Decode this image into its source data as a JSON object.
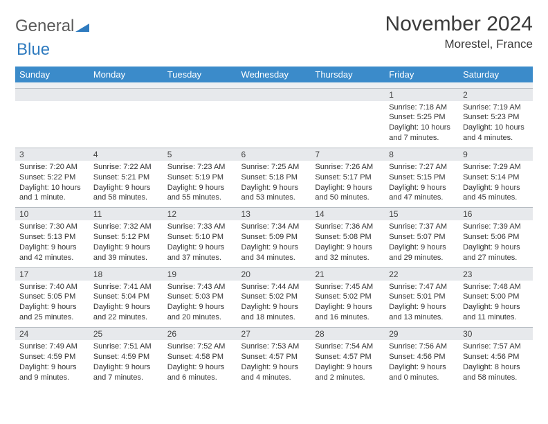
{
  "logo": {
    "text1": "General",
    "text2": "Blue"
  },
  "title": "November 2024",
  "location": "Morestel, France",
  "colors": {
    "header_bg": "#3b8bca",
    "header_text": "#ffffff",
    "daynum_bg": "#e7e9ec",
    "border": "#b6bcc2",
    "text": "#333333"
  },
  "day_names": [
    "Sunday",
    "Monday",
    "Tuesday",
    "Wednesday",
    "Thursday",
    "Friday",
    "Saturday"
  ],
  "weeks": [
    [
      null,
      null,
      null,
      null,
      null,
      {
        "n": "1",
        "sr": "7:18 AM",
        "ss": "5:25 PM",
        "dl": "10 hours and 7 minutes."
      },
      {
        "n": "2",
        "sr": "7:19 AM",
        "ss": "5:23 PM",
        "dl": "10 hours and 4 minutes."
      }
    ],
    [
      {
        "n": "3",
        "sr": "7:20 AM",
        "ss": "5:22 PM",
        "dl": "10 hours and 1 minute."
      },
      {
        "n": "4",
        "sr": "7:22 AM",
        "ss": "5:21 PM",
        "dl": "9 hours and 58 minutes."
      },
      {
        "n": "5",
        "sr": "7:23 AM",
        "ss": "5:19 PM",
        "dl": "9 hours and 55 minutes."
      },
      {
        "n": "6",
        "sr": "7:25 AM",
        "ss": "5:18 PM",
        "dl": "9 hours and 53 minutes."
      },
      {
        "n": "7",
        "sr": "7:26 AM",
        "ss": "5:17 PM",
        "dl": "9 hours and 50 minutes."
      },
      {
        "n": "8",
        "sr": "7:27 AM",
        "ss": "5:15 PM",
        "dl": "9 hours and 47 minutes."
      },
      {
        "n": "9",
        "sr": "7:29 AM",
        "ss": "5:14 PM",
        "dl": "9 hours and 45 minutes."
      }
    ],
    [
      {
        "n": "10",
        "sr": "7:30 AM",
        "ss": "5:13 PM",
        "dl": "9 hours and 42 minutes."
      },
      {
        "n": "11",
        "sr": "7:32 AM",
        "ss": "5:12 PM",
        "dl": "9 hours and 39 minutes."
      },
      {
        "n": "12",
        "sr": "7:33 AM",
        "ss": "5:10 PM",
        "dl": "9 hours and 37 minutes."
      },
      {
        "n": "13",
        "sr": "7:34 AM",
        "ss": "5:09 PM",
        "dl": "9 hours and 34 minutes."
      },
      {
        "n": "14",
        "sr": "7:36 AM",
        "ss": "5:08 PM",
        "dl": "9 hours and 32 minutes."
      },
      {
        "n": "15",
        "sr": "7:37 AM",
        "ss": "5:07 PM",
        "dl": "9 hours and 29 minutes."
      },
      {
        "n": "16",
        "sr": "7:39 AM",
        "ss": "5:06 PM",
        "dl": "9 hours and 27 minutes."
      }
    ],
    [
      {
        "n": "17",
        "sr": "7:40 AM",
        "ss": "5:05 PM",
        "dl": "9 hours and 25 minutes."
      },
      {
        "n": "18",
        "sr": "7:41 AM",
        "ss": "5:04 PM",
        "dl": "9 hours and 22 minutes."
      },
      {
        "n": "19",
        "sr": "7:43 AM",
        "ss": "5:03 PM",
        "dl": "9 hours and 20 minutes."
      },
      {
        "n": "20",
        "sr": "7:44 AM",
        "ss": "5:02 PM",
        "dl": "9 hours and 18 minutes."
      },
      {
        "n": "21",
        "sr": "7:45 AM",
        "ss": "5:02 PM",
        "dl": "9 hours and 16 minutes."
      },
      {
        "n": "22",
        "sr": "7:47 AM",
        "ss": "5:01 PM",
        "dl": "9 hours and 13 minutes."
      },
      {
        "n": "23",
        "sr": "7:48 AM",
        "ss": "5:00 PM",
        "dl": "9 hours and 11 minutes."
      }
    ],
    [
      {
        "n": "24",
        "sr": "7:49 AM",
        "ss": "4:59 PM",
        "dl": "9 hours and 9 minutes."
      },
      {
        "n": "25",
        "sr": "7:51 AM",
        "ss": "4:59 PM",
        "dl": "9 hours and 7 minutes."
      },
      {
        "n": "26",
        "sr": "7:52 AM",
        "ss": "4:58 PM",
        "dl": "9 hours and 6 minutes."
      },
      {
        "n": "27",
        "sr": "7:53 AM",
        "ss": "4:57 PM",
        "dl": "9 hours and 4 minutes."
      },
      {
        "n": "28",
        "sr": "7:54 AM",
        "ss": "4:57 PM",
        "dl": "9 hours and 2 minutes."
      },
      {
        "n": "29",
        "sr": "7:56 AM",
        "ss": "4:56 PM",
        "dl": "9 hours and 0 minutes."
      },
      {
        "n": "30",
        "sr": "7:57 AM",
        "ss": "4:56 PM",
        "dl": "8 hours and 58 minutes."
      }
    ]
  ],
  "labels": {
    "sunrise": "Sunrise: ",
    "sunset": "Sunset: ",
    "daylight": "Daylight: "
  }
}
